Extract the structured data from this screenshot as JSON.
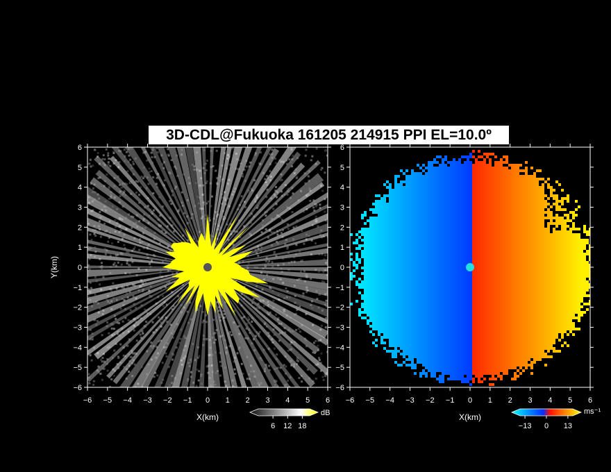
{
  "title": "3D-CDL@Fukuoka 161205 214915 PPI EL=10.0º",
  "chart_data": [
    {
      "type": "heatmap",
      "variable": "reflectivity",
      "xlabel": "X(km)",
      "ylabel": "Y(km)",
      "xlim": [
        -6,
        6
      ],
      "ylim": [
        -6,
        6
      ],
      "xticks": [
        "−6",
        "−5",
        "−4",
        "−3",
        "−2",
        "−1",
        "0",
        "1",
        "2",
        "3",
        "4",
        "5",
        "6"
      ],
      "yticks": [
        "6",
        "5",
        "4",
        "3",
        "2",
        "1",
        "0",
        "−1",
        "−2",
        "−3",
        "−4",
        "−5",
        "−6"
      ],
      "colorbar": {
        "unit": "dB",
        "ticks": [
          "6",
          "12",
          "18"
        ],
        "range": [
          0,
          21
        ],
        "colors": [
          "#101010",
          "#ffffff",
          "#ffff00"
        ]
      },
      "center": [
        0,
        0
      ]
    },
    {
      "type": "heatmap",
      "variable": "doppler velocity",
      "xlabel": "X(km)",
      "xlim": [
        -6,
        6
      ],
      "ylim": [
        -6,
        6
      ],
      "xticks": [
        "−6",
        "−5",
        "−4",
        "−3",
        "−2",
        "−1",
        "0",
        "1",
        "2",
        "3",
        "4",
        "5",
        "6"
      ],
      "yticks": [
        "6",
        "5",
        "4",
        "3",
        "2",
        "1",
        "0",
        "−1",
        "−2",
        "−3",
        "−4",
        "−5",
        "−6"
      ],
      "colorbar": {
        "unit": "ms⁻¹",
        "ticks": [
          "−13",
          "0",
          "13"
        ],
        "range": [
          -16,
          16
        ],
        "colors": [
          "#00ffff",
          "#0040ff",
          "#ff0000",
          "#ffff00"
        ]
      },
      "center": [
        0,
        0
      ]
    }
  ]
}
